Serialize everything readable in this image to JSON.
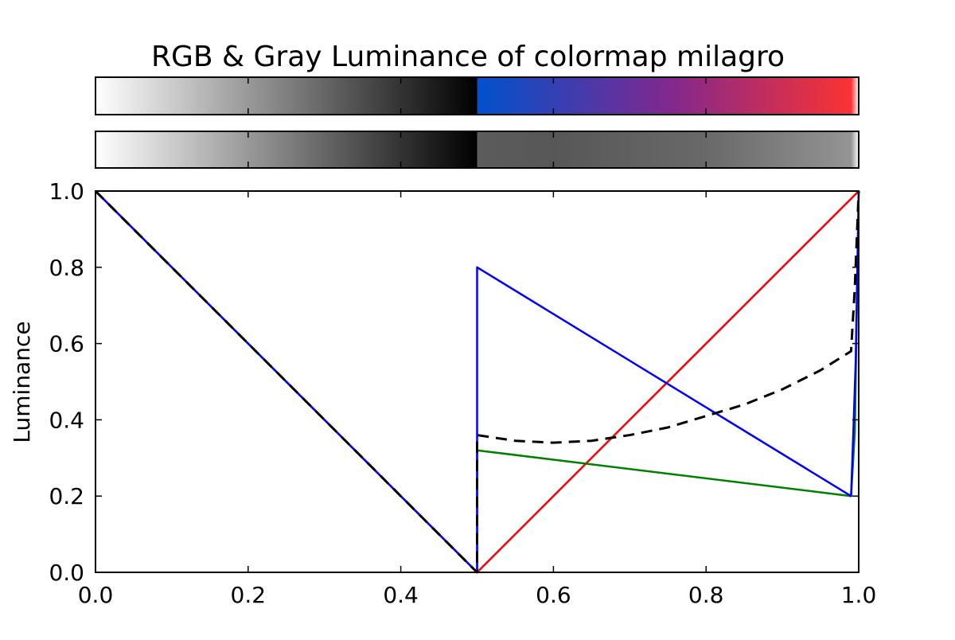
{
  "chart_data": {
    "type": "line",
    "title": "RGB & Gray Luminance of colormap milagro",
    "xlabel": "",
    "ylabel": "Luminance",
    "xlim": [
      0.0,
      1.0
    ],
    "ylim": [
      0.0,
      1.0
    ],
    "x_ticks": [
      "0.0",
      "0.2",
      "0.4",
      "0.6",
      "0.8",
      "1.0"
    ],
    "y_ticks": [
      "0.0",
      "0.2",
      "0.4",
      "0.6",
      "0.8",
      "1.0"
    ],
    "grid": false,
    "legend": "none",
    "series": [
      {
        "color": "#ff0000",
        "style": "solid",
        "x": [
          0.0,
          0.5,
          0.5,
          0.99,
          1.0
        ],
        "y": [
          1.0,
          0.0,
          0.0,
          0.98,
          1.0
        ]
      },
      {
        "color": "#008000",
        "style": "solid",
        "x": [
          0.0,
          0.5,
          0.5,
          0.99,
          0.995,
          1.0
        ],
        "y": [
          1.0,
          0.0,
          0.32,
          0.2,
          0.37,
          1.0
        ]
      },
      {
        "color": "#0000ff",
        "style": "solid",
        "x": [
          0.0,
          0.5,
          0.5,
          0.99,
          0.993,
          0.996,
          1.0
        ],
        "y": [
          1.0,
          0.0,
          0.8,
          0.2,
          0.37,
          0.55,
          1.0
        ]
      },
      {
        "color": "#000000",
        "style": "dashed",
        "x": [
          0.0,
          0.5,
          0.5,
          0.55,
          0.6,
          0.65,
          0.7,
          0.75,
          0.8,
          0.85,
          0.9,
          0.95,
          0.99,
          0.995,
          1.0
        ],
        "y": [
          1.0,
          0.0,
          0.36,
          0.345,
          0.34,
          0.345,
          0.36,
          0.38,
          0.41,
          0.44,
          0.48,
          0.53,
          0.58,
          0.75,
          1.0
        ]
      }
    ],
    "colorbars": [
      {
        "kind": "color",
        "stops": [
          {
            "at": 0.0,
            "color": "#ffffff"
          },
          {
            "at": 0.5,
            "color": "#000000"
          },
          {
            "at": 0.5,
            "color": "#0051cc"
          },
          {
            "at": 0.75,
            "color": "#80288f"
          },
          {
            "at": 0.99,
            "color": "#fa3333"
          },
          {
            "at": 1.0,
            "color": "#ffffff"
          }
        ]
      },
      {
        "kind": "gray",
        "stops": [
          {
            "at": 0.0,
            "color": "#ffffff"
          },
          {
            "at": 0.5,
            "color": "#000000"
          },
          {
            "at": 0.5,
            "color": "#5c5c5c"
          },
          {
            "at": 0.6,
            "color": "#575757"
          },
          {
            "at": 0.8,
            "color": "#696969"
          },
          {
            "at": 0.99,
            "color": "#949494"
          },
          {
            "at": 1.0,
            "color": "#ffffff"
          }
        ]
      }
    ]
  }
}
